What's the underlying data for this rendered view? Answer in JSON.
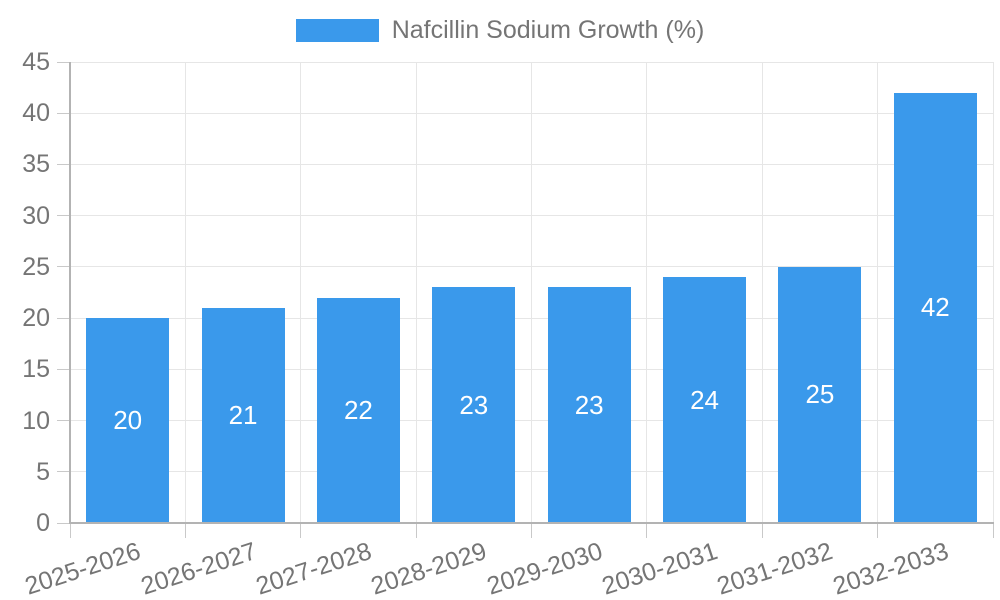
{
  "legend": {
    "label": "Nafcillin Sodium Growth (%)"
  },
  "colors": {
    "bar": "#3A99EB",
    "grid": "#E6E6E6",
    "tick": "#C9C9C9",
    "axis": "#B3B3B3",
    "text": "#757575",
    "bar_label": "#FFFFFF",
    "background": "#FFFFFF"
  },
  "chart_data": {
    "type": "bar",
    "title": "",
    "legend": "Nafcillin Sodium Growth (%)",
    "legend_position": "top",
    "categories": [
      "2025-2026",
      "2026-2027",
      "2027-2028",
      "2028-2029",
      "2029-2030",
      "2030-2031",
      "2031-2032",
      "2032-2033"
    ],
    "values": [
      20,
      21,
      22,
      23,
      23,
      24,
      25,
      42
    ],
    "xlabel": "",
    "ylabel": "",
    "ylim": [
      0,
      45
    ],
    "yticks": [
      0,
      5,
      10,
      15,
      20,
      25,
      30,
      35,
      40,
      45
    ],
    "grid": true,
    "value_labels": "inside-center"
  }
}
